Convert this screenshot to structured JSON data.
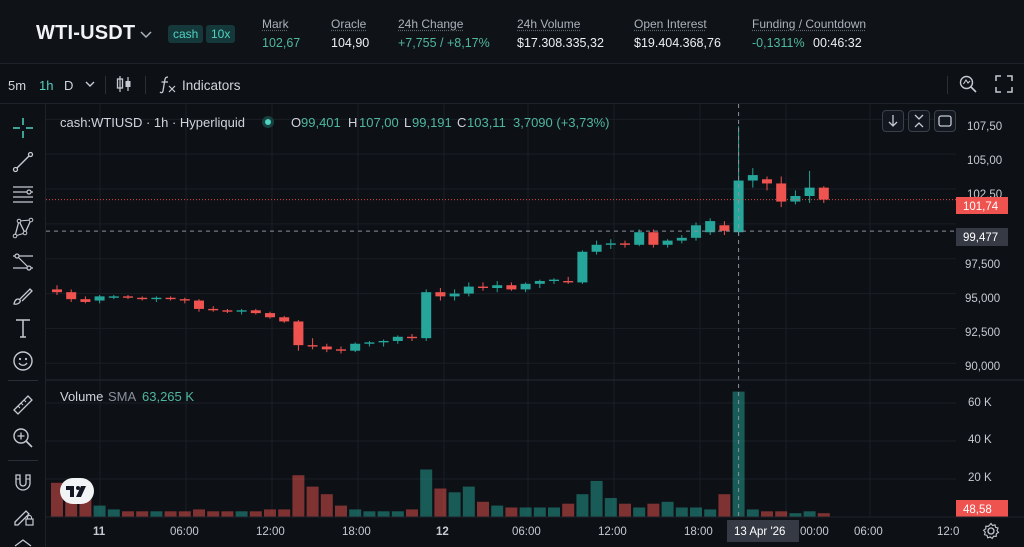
{
  "header": {
    "symbol": "WTI-USDT",
    "badges": [
      "cash",
      "10x"
    ],
    "stats": [
      {
        "label": "Mark",
        "value": "102,67",
        "tone": "green"
      },
      {
        "label": "Oracle",
        "value": "104,90",
        "tone": "plain"
      },
      {
        "label": "24h Change",
        "value": "+7,755 / +8,17%",
        "tone": "green"
      },
      {
        "label": "24h Volume",
        "value": "$17.308.335,32",
        "tone": "plain"
      },
      {
        "label": "Open Interest",
        "value": "$19.404.368,76",
        "tone": "plain"
      },
      {
        "label": "Funding / Countdown",
        "value": "-0,1311%",
        "countdown": "00:46:32",
        "tone": "green"
      }
    ]
  },
  "toolbar": {
    "timeframes": [
      "5m",
      "1h",
      "D"
    ],
    "active_timeframe": "1h",
    "indicators_label": "Indicators",
    "icons": [
      "chevron-down-icon",
      "candles-icon",
      "fx-icon",
      "snapshot-icon",
      "fullscreen-icon"
    ]
  },
  "rail_icons": [
    "crosshair-icon",
    "trend-line-icon",
    "fib-lines-icon",
    "pattern-icon",
    "projection-icon",
    "brush-icon",
    "text-icon",
    "emoji-icon",
    "ruler-icon",
    "zoom-in-icon",
    "magnet-icon",
    "lock-pencil-icon"
  ],
  "legend": {
    "title": "cash:WTIUSD · 1h · Hyperliquid",
    "o_label": "O",
    "o": "99,401",
    "h_label": "H",
    "h": "107,00",
    "l_label": "L",
    "l": "99,191",
    "c_label": "C",
    "c": "103,11",
    "change": "3,7090 (+3,73%)"
  },
  "volume_legend": {
    "label": "Volume",
    "sma_label": "SMA",
    "sma": "63,265 K"
  },
  "colors": {
    "up": "#26a69a",
    "down": "#ef5350",
    "bg": "#0d1015",
    "accent": "#50d2c1"
  },
  "chart_data": {
    "type": "candlestick",
    "price_ticks": [
      "107,50",
      "105,00",
      "102,50",
      "97,500",
      "95,000",
      "92,500",
      "90,000"
    ],
    "volume_ticks": [
      "60 K",
      "40 K",
      "20 K"
    ],
    "time_ticks": [
      "11",
      "06:00",
      "12:00",
      "18:00",
      "12",
      "06:00",
      "12:00",
      "18:00",
      "13 Apr '26",
      "00:00",
      "06:00",
      "12:0"
    ],
    "last_price_label": "101,74",
    "crosshair_price_label": "99,477",
    "volume_label": "48,58",
    "last_price": 101.74,
    "crosshair_price": 99.477,
    "price_range": [
      88.8,
      108.6
    ],
    "volume_range": [
      0,
      70
    ],
    "candles": [
      {
        "o": 95.3,
        "h": 95.6,
        "l": 94.9,
        "c": 95.1
      },
      {
        "o": 95.1,
        "h": 95.3,
        "l": 94.4,
        "c": 94.6
      },
      {
        "o": 94.6,
        "h": 94.8,
        "l": 94.3,
        "c": 94.4
      },
      {
        "o": 94.5,
        "h": 94.9,
        "l": 94.3,
        "c": 94.8
      },
      {
        "o": 94.7,
        "h": 94.9,
        "l": 94.6,
        "c": 94.8
      },
      {
        "o": 94.8,
        "h": 94.9,
        "l": 94.6,
        "c": 94.7
      },
      {
        "o": 94.7,
        "h": 94.8,
        "l": 94.5,
        "c": 94.6
      },
      {
        "o": 94.6,
        "h": 94.8,
        "l": 94.4,
        "c": 94.7
      },
      {
        "o": 94.7,
        "h": 94.8,
        "l": 94.5,
        "c": 94.6
      },
      {
        "o": 94.6,
        "h": 94.7,
        "l": 94.3,
        "c": 94.5
      },
      {
        "o": 94.5,
        "h": 94.6,
        "l": 93.7,
        "c": 93.9
      },
      {
        "o": 93.9,
        "h": 94.1,
        "l": 93.7,
        "c": 93.8
      },
      {
        "o": 93.8,
        "h": 93.9,
        "l": 93.6,
        "c": 93.7
      },
      {
        "o": 93.7,
        "h": 93.9,
        "l": 93.5,
        "c": 93.8
      },
      {
        "o": 93.8,
        "h": 93.9,
        "l": 93.5,
        "c": 93.6
      },
      {
        "o": 93.6,
        "h": 93.7,
        "l": 93.2,
        "c": 93.3
      },
      {
        "o": 93.3,
        "h": 93.4,
        "l": 92.9,
        "c": 93.0
      },
      {
        "o": 93.0,
        "h": 93.1,
        "l": 90.9,
        "c": 91.3
      },
      {
        "o": 91.3,
        "h": 91.8,
        "l": 91.0,
        "c": 91.2
      },
      {
        "o": 91.2,
        "h": 91.4,
        "l": 90.8,
        "c": 91.0
      },
      {
        "o": 91.0,
        "h": 91.2,
        "l": 90.7,
        "c": 90.9
      },
      {
        "o": 90.9,
        "h": 91.5,
        "l": 90.8,
        "c": 91.4
      },
      {
        "o": 91.4,
        "h": 91.6,
        "l": 91.2,
        "c": 91.5
      },
      {
        "o": 91.5,
        "h": 91.7,
        "l": 91.2,
        "c": 91.6
      },
      {
        "o": 91.6,
        "h": 92.0,
        "l": 91.4,
        "c": 91.9
      },
      {
        "o": 91.9,
        "h": 92.1,
        "l": 91.6,
        "c": 91.8
      },
      {
        "o": 91.8,
        "h": 95.3,
        "l": 91.6,
        "c": 95.1
      },
      {
        "o": 95.1,
        "h": 95.4,
        "l": 94.5,
        "c": 94.8
      },
      {
        "o": 94.8,
        "h": 95.3,
        "l": 94.5,
        "c": 95.0
      },
      {
        "o": 95.0,
        "h": 95.8,
        "l": 94.8,
        "c": 95.5
      },
      {
        "o": 95.5,
        "h": 95.8,
        "l": 95.2,
        "c": 95.4
      },
      {
        "o": 95.4,
        "h": 95.9,
        "l": 95.1,
        "c": 95.6
      },
      {
        "o": 95.6,
        "h": 95.8,
        "l": 95.2,
        "c": 95.3
      },
      {
        "o": 95.3,
        "h": 95.8,
        "l": 95.1,
        "c": 95.7
      },
      {
        "o": 95.7,
        "h": 96.0,
        "l": 95.4,
        "c": 95.9
      },
      {
        "o": 95.9,
        "h": 96.1,
        "l": 95.7,
        "c": 96.0
      },
      {
        "o": 95.9,
        "h": 96.2,
        "l": 95.7,
        "c": 95.8
      },
      {
        "o": 95.8,
        "h": 98.1,
        "l": 95.7,
        "c": 98.0
      },
      {
        "o": 98.0,
        "h": 98.8,
        "l": 97.8,
        "c": 98.5
      },
      {
        "o": 98.5,
        "h": 98.9,
        "l": 98.2,
        "c": 98.6
      },
      {
        "o": 98.6,
        "h": 98.8,
        "l": 98.3,
        "c": 98.5
      },
      {
        "o": 98.5,
        "h": 99.6,
        "l": 98.4,
        "c": 99.4
      },
      {
        "o": 99.4,
        "h": 99.6,
        "l": 98.3,
        "c": 98.5
      },
      {
        "o": 98.5,
        "h": 98.9,
        "l": 98.3,
        "c": 98.8
      },
      {
        "o": 98.8,
        "h": 99.2,
        "l": 98.6,
        "c": 99.0
      },
      {
        "o": 99.0,
        "h": 100.1,
        "l": 98.8,
        "c": 99.9
      },
      {
        "o": 99.4,
        "h": 100.4,
        "l": 99.2,
        "c": 100.2
      },
      {
        "o": 99.9,
        "h": 100.2,
        "l": 99.2,
        "c": 99.5
      },
      {
        "o": 99.401,
        "h": 107.0,
        "l": 99.191,
        "c": 103.11
      },
      {
        "o": 103.11,
        "h": 104.0,
        "l": 102.6,
        "c": 103.5
      },
      {
        "o": 103.2,
        "h": 103.4,
        "l": 102.4,
        "c": 102.9
      },
      {
        "o": 102.9,
        "h": 103.4,
        "l": 101.2,
        "c": 101.6
      },
      {
        "o": 101.6,
        "h": 102.4,
        "l": 101.4,
        "c": 102.0
      },
      {
        "o": 102.0,
        "h": 103.8,
        "l": 101.5,
        "c": 102.6
      },
      {
        "o": 102.6,
        "h": 102.7,
        "l": 101.5,
        "c": 101.74
      }
    ],
    "volumes": [
      18,
      14,
      10,
      6,
      4,
      3,
      3,
      3,
      3,
      3,
      4,
      3,
      3,
      3,
      3,
      4,
      4,
      22,
      16,
      12,
      6,
      4,
      3,
      3,
      3,
      4,
      25,
      15,
      13,
      16,
      8,
      6,
      5,
      5,
      5,
      5,
      7,
      12,
      19,
      10,
      7,
      5,
      7,
      8,
      5,
      5,
      4,
      12,
      66,
      4,
      3,
      3,
      2,
      3,
      2
    ]
  }
}
